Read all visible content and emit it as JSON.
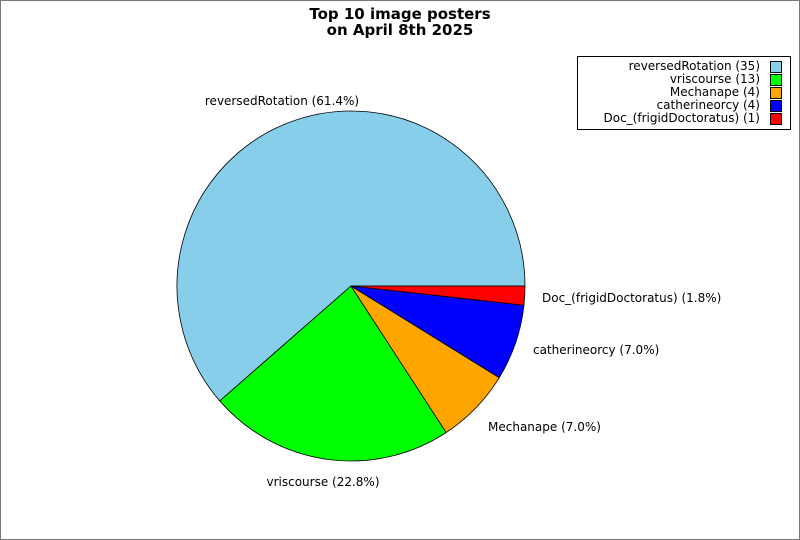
{
  "chart_data": {
    "type": "pie",
    "title_lines": [
      "Top 10 image posters",
      "on April 8th 2025"
    ],
    "slices": [
      {
        "name": "reversedRotation",
        "count": 35,
        "percent": 61.4,
        "label": "reversedRotation (61.4%)",
        "legend": "reversedRotation (35)",
        "color": "#87CEEB"
      },
      {
        "name": "vriscourse",
        "count": 13,
        "percent": 22.8,
        "label": "vriscourse (22.8%)",
        "legend": "vriscourse (13)",
        "color": "#00FF00"
      },
      {
        "name": "Mechanape",
        "count": 4,
        "percent": 7.0,
        "label": "Mechanape (7.0%)",
        "legend": "Mechanape (4)",
        "color": "#FFA500"
      },
      {
        "name": "catherineorcy",
        "count": 4,
        "percent": 7.0,
        "label": "catherineorcy (7.0%)",
        "legend": "catherineorcy (4)",
        "color": "#0000FF"
      },
      {
        "name": "Doc_(frigidDoctoratus)",
        "count": 1,
        "percent": 1.8,
        "label": "Doc_(frigidDoctoratus) (1.8%)",
        "legend": "Doc_(frigidDoctoratus) (1)",
        "color": "#FF0000"
      }
    ],
    "start_angle_deg": 0,
    "direction": "counterclockwise",
    "legend_position": "top-right"
  }
}
